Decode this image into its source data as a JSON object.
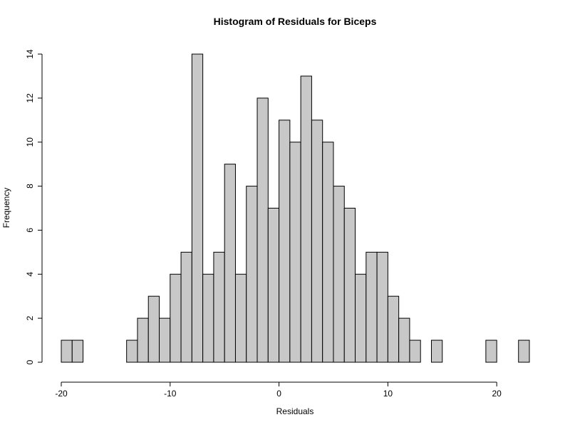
{
  "chart_data": {
    "type": "bar",
    "title": "Histogram of Residuals for Biceps",
    "xlabel": "Residuals",
    "ylabel": "Frequency",
    "bin_width": 1,
    "bin_start": -20,
    "counts": [
      1,
      1,
      0,
      0,
      0,
      0,
      1,
      2,
      3,
      2,
      4,
      5,
      14,
      4,
      5,
      9,
      4,
      8,
      12,
      7,
      11,
      10,
      13,
      11,
      10,
      8,
      7,
      4,
      5,
      5,
      3,
      2,
      1,
      0,
      1,
      0,
      0,
      0,
      0,
      1,
      0,
      0,
      1
    ],
    "xlim": [
      -20,
      23
    ],
    "ylim": [
      0,
      14
    ],
    "x_ticks": [
      -20,
      -10,
      0,
      10,
      20
    ],
    "x_tick_labels": [
      "-20",
      "-10",
      "0",
      "10",
      "20"
    ],
    "y_ticks": [
      0,
      2,
      4,
      6,
      8,
      10,
      12,
      14
    ],
    "y_tick_labels": [
      "0",
      "2",
      "4",
      "6",
      "8",
      "10",
      "12",
      "14"
    ],
    "bar_fill": "#c8c8c8",
    "bar_stroke": "#000000",
    "grid": false,
    "legend": "none"
  }
}
